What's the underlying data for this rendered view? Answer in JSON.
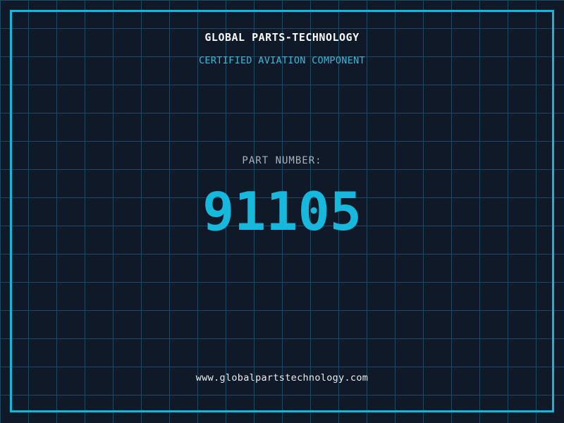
{
  "theme": {
    "background": "#0f1928",
    "grid_line": "#1d4a60",
    "frame": "#0fb9dc",
    "title_color": "#f5f7f9",
    "subtitle_color": "#3bb7d9",
    "label_color": "#a7b1bc",
    "part_number_color": "#16b9db",
    "footer_color": "#e9edf0"
  },
  "header": {
    "title": "GLOBAL PARTS-TECHNOLOGY",
    "subtitle": "CERTIFIED AVIATION COMPONENT"
  },
  "main": {
    "part_label": "PART NUMBER:",
    "part_number": "91105"
  },
  "footer": {
    "website": "www.globalpartstechnology.com"
  }
}
